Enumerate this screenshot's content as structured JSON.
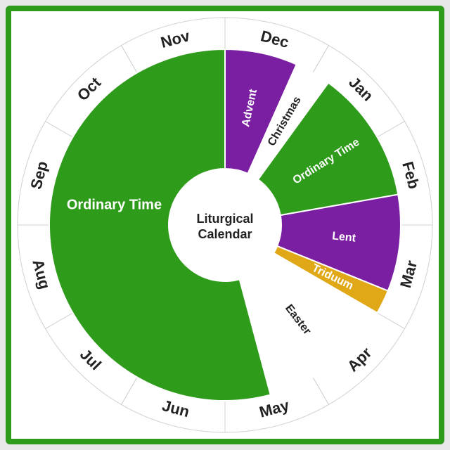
{
  "frame": {
    "border_color": "#2f9b1b",
    "background": "#ffffff",
    "page_background": "#e8e8e8"
  },
  "chart": {
    "type": "pie",
    "center_label_line1": "Liturgical",
    "center_label_line2": "Calendar",
    "center_label_fontsize": 18,
    "center_label_weight": "600",
    "center_label_color": "#222222",
    "background_color": "#ffffff",
    "outer_ring_color": "#ffffff",
    "outer_ring_stroke": "#d0d0d0",
    "month_font_color": "#222222",
    "month_fontsize": 22,
    "month_fontweight": "600",
    "season_fontsize": 16,
    "season_fontsize_large": 20,
    "season_fontcolor_light": "#ffffff",
    "season_fontcolor_dark": "#222222",
    "months": [
      {
        "label": "Dec",
        "angle_start": -90,
        "angle_end": -60
      },
      {
        "label": "Jan",
        "angle_start": -60,
        "angle_end": -30
      },
      {
        "label": "Feb",
        "angle_start": -30,
        "angle_end": 0
      },
      {
        "label": "Mar",
        "angle_start": 0,
        "angle_end": 30
      },
      {
        "label": "Apr",
        "angle_start": 30,
        "angle_end": 60
      },
      {
        "label": "May",
        "angle_start": 60,
        "angle_end": 90
      },
      {
        "label": "Jun",
        "angle_start": 90,
        "angle_end": 120
      },
      {
        "label": "Jul",
        "angle_start": 120,
        "angle_end": 150
      },
      {
        "label": "Aug",
        "angle_start": 150,
        "angle_end": 180
      },
      {
        "label": "Sep",
        "angle_start": 180,
        "angle_end": 210
      },
      {
        "label": "Oct",
        "angle_start": 210,
        "angle_end": 240
      },
      {
        "label": "Nov",
        "angle_start": 240,
        "angle_end": 270
      }
    ],
    "seasons": [
      {
        "name": "Advent",
        "angle_start": -90,
        "angle_end": -66,
        "color": "#7b1fa2",
        "text_color": "#ffffff",
        "rotate_offset": 0
      },
      {
        "name": "Christmas",
        "angle_start": -66,
        "angle_end": -54,
        "color": "#ffffff",
        "text_color": "#222222",
        "rotate_offset": 0
      },
      {
        "name": "Ordinary Time",
        "angle_start": -54,
        "angle_end": -10,
        "color": "#2f9b1b",
        "text_color": "#ffffff",
        "rotate_offset": 0
      },
      {
        "name": "Lent",
        "angle_start": -10,
        "angle_end": 22,
        "color": "#7b1fa2",
        "text_color": "#ffffff",
        "rotate_offset": 0
      },
      {
        "name": "Triduum",
        "angle_start": 22,
        "angle_end": 30,
        "color": "#e0a817",
        "text_color": "#ffffff",
        "rotate_offset": 0
      },
      {
        "name": "Easter",
        "angle_start": 30,
        "angle_end": 75,
        "color": "#ffffff",
        "text_color": "#222222",
        "rotate_offset": 0
      },
      {
        "name": "Ordinary Time",
        "angle_start": 75,
        "angle_end": 270,
        "color": "#2f9b1b",
        "text_color": "#ffffff",
        "rotate_offset": 0,
        "large": true
      }
    ],
    "radii": {
      "outer_ring_outer": 295,
      "outer_ring_inner": 250,
      "season_outer": 250,
      "season_inner": 80,
      "month_label": 272,
      "season_label": 170,
      "season_label_large": 170
    }
  }
}
